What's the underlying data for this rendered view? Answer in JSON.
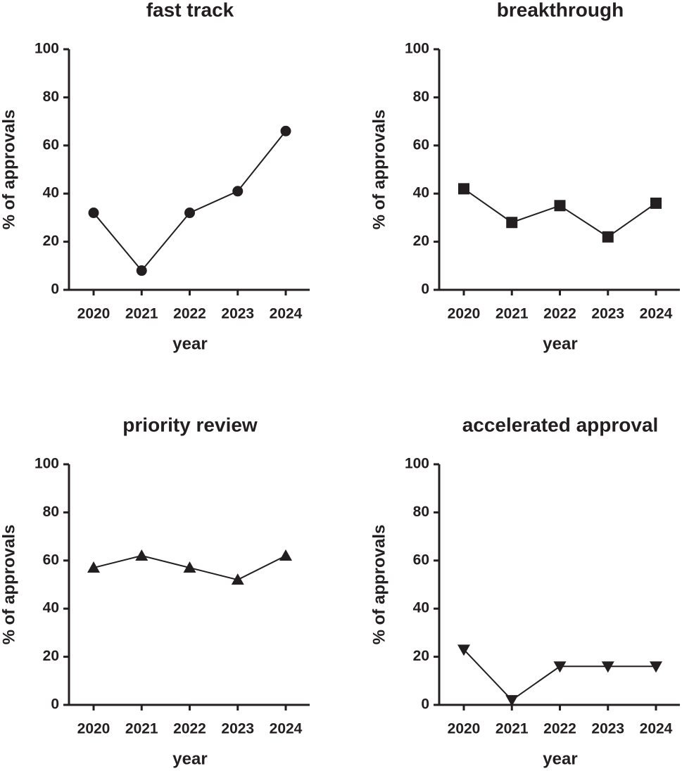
{
  "chart_data": [
    {
      "type": "line",
      "title": "fast track",
      "xlabel": "year",
      "ylabel": "% of approvals",
      "categories": [
        "2020",
        "2021",
        "2022",
        "2023",
        "2024"
      ],
      "series": [
        {
          "values": [
            32,
            8,
            32,
            41,
            66
          ],
          "color": "#231f20",
          "marker": "circle"
        }
      ],
      "ylim": [
        0,
        100
      ],
      "yticks": [
        0,
        20,
        40,
        60,
        80,
        100
      ]
    },
    {
      "type": "line",
      "title": "breakthrough",
      "xlabel": "year",
      "ylabel": "% of approvals",
      "categories": [
        "2020",
        "2021",
        "2022",
        "2023",
        "2024"
      ],
      "series": [
        {
          "values": [
            42,
            28,
            35,
            22,
            36
          ],
          "color": "#231f20",
          "marker": "square"
        }
      ],
      "ylim": [
        0,
        100
      ],
      "yticks": [
        0,
        20,
        40,
        60,
        80,
        100
      ]
    },
    {
      "type": "line",
      "title": "priority review",
      "xlabel": "year",
      "ylabel": "% of approvals",
      "categories": [
        "2020",
        "2021",
        "2022",
        "2023",
        "2024"
      ],
      "series": [
        {
          "values": [
            57,
            62,
            57,
            52,
            62
          ],
          "color": "#231f20",
          "marker": "triangle"
        }
      ],
      "ylim": [
        0,
        100
      ],
      "yticks": [
        0,
        20,
        40,
        60,
        80,
        100
      ]
    },
    {
      "type": "line",
      "title": "accelerated approval",
      "xlabel": "year",
      "ylabel": "% of approvals",
      "categories": [
        "2020",
        "2021",
        "2022",
        "2023",
        "2024"
      ],
      "series": [
        {
          "values": [
            23,
            2,
            16,
            16,
            16
          ],
          "color": "#231f20",
          "marker": "triangle-down"
        }
      ],
      "ylim": [
        0,
        100
      ],
      "yticks": [
        0,
        20,
        40,
        60,
        80,
        100
      ]
    }
  ]
}
